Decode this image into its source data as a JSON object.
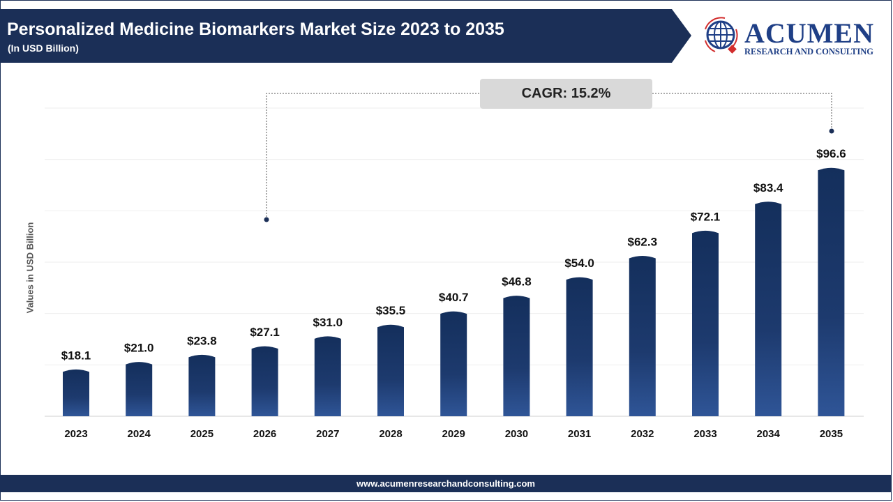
{
  "header": {
    "title": "Personalized Medicine Biomarkers Market Size 2023 to 2035",
    "subtitle": "(In USD Billion)"
  },
  "logo": {
    "word": "ACUMEN",
    "tagline": "RESEARCH AND CONSULTING"
  },
  "cagr_label": "CAGR: 15.2%",
  "footer": {
    "url": "www.acumenresearchandconsulting.com"
  },
  "colors": {
    "header_bg": "#1b2f57",
    "bar_top": "#142f5c",
    "bar_bottom": "#2f5597",
    "logo_blue": "#1f3f86",
    "logo_red": "#d22c2c"
  },
  "chart_data": {
    "type": "bar",
    "title": "Personalized Medicine Biomarkers Market Size 2023 to 2035",
    "subtitle": "(In USD Billion)",
    "ylabel": "Values in USD Billion",
    "xlabel": "",
    "categories": [
      "2023",
      "2024",
      "2025",
      "2026",
      "2027",
      "2028",
      "2029",
      "2030",
      "2031",
      "2032",
      "2033",
      "2034",
      "2035"
    ],
    "values": [
      18.1,
      21.0,
      23.8,
      27.1,
      31.0,
      35.5,
      40.7,
      46.8,
      54.0,
      62.3,
      72.1,
      83.4,
      96.6
    ],
    "data_labels": [
      "$18.1",
      "$21.0",
      "$23.8",
      "$27.1",
      "$31.0",
      "$35.5",
      "$40.7",
      "$46.8",
      "$54.0",
      "$62.3",
      "$72.1",
      "$83.4",
      "$96.6"
    ],
    "ylim": [
      0,
      120
    ],
    "grid": true,
    "annotation": "CAGR: 15.2%"
  }
}
